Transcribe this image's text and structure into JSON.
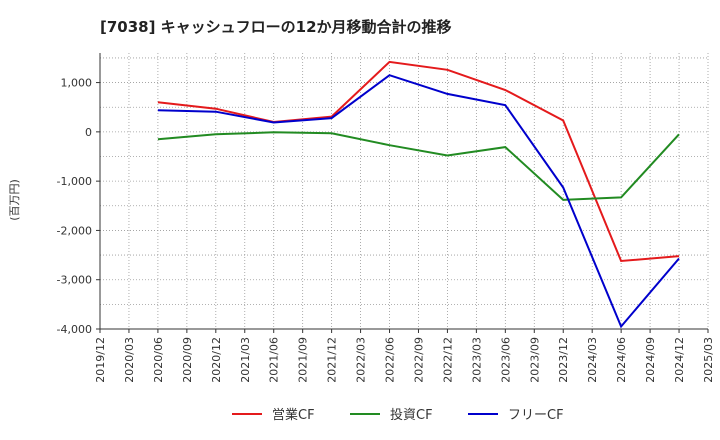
{
  "chart_data": {
    "type": "line",
    "title": "[7038]  キャッシュフローの12か月移動合計の推移",
    "ylabel": "(百万円)",
    "xlabel": "",
    "ylim": [
      -4000,
      1600
    ],
    "yticks": [
      1000,
      0,
      -1000,
      -2000,
      -3000,
      -4000
    ],
    "ytick_labels": [
      "1,000",
      "0",
      "-1,000",
      "-2,000",
      "-3,000",
      "-4,000"
    ],
    "grid": true,
    "legend_position": "bottom",
    "x_categories": [
      "2019/12",
      "2020/03",
      "2020/06",
      "2020/09",
      "2020/12",
      "2021/03",
      "2021/06",
      "2021/09",
      "2021/12",
      "2022/03",
      "2022/06",
      "2022/09",
      "2022/12",
      "2023/03",
      "2023/06",
      "2023/09",
      "2023/12",
      "2024/03",
      "2024/06",
      "2024/09",
      "2024/12",
      "2025/03"
    ],
    "series": [
      {
        "name": "営業CF",
        "color": "#e41a1c",
        "points": [
          {
            "x": "2020/06",
            "y": 600
          },
          {
            "x": "2020/12",
            "y": 470
          },
          {
            "x": "2021/06",
            "y": 200
          },
          {
            "x": "2021/12",
            "y": 310
          },
          {
            "x": "2022/06",
            "y": 1420
          },
          {
            "x": "2022/12",
            "y": 1260
          },
          {
            "x": "2023/06",
            "y": 850
          },
          {
            "x": "2023/12",
            "y": 230
          },
          {
            "x": "2024/06",
            "y": -2620
          },
          {
            "x": "2024/12",
            "y": -2520
          }
        ]
      },
      {
        "name": "投資CF",
        "color": "#228b22",
        "points": [
          {
            "x": "2020/06",
            "y": -150
          },
          {
            "x": "2020/12",
            "y": -50
          },
          {
            "x": "2021/06",
            "y": -10
          },
          {
            "x": "2021/12",
            "y": -30
          },
          {
            "x": "2022/06",
            "y": -270
          },
          {
            "x": "2022/12",
            "y": -480
          },
          {
            "x": "2023/06",
            "y": -310
          },
          {
            "x": "2023/12",
            "y": -1380
          },
          {
            "x": "2024/06",
            "y": -1330
          },
          {
            "x": "2024/12",
            "y": -50
          }
        ]
      },
      {
        "name": "フリーCF",
        "color": "#0000cc",
        "points": [
          {
            "x": "2020/06",
            "y": 440
          },
          {
            "x": "2020/12",
            "y": 410
          },
          {
            "x": "2021/06",
            "y": 190
          },
          {
            "x": "2021/12",
            "y": 280
          },
          {
            "x": "2022/06",
            "y": 1150
          },
          {
            "x": "2022/12",
            "y": 770
          },
          {
            "x": "2023/06",
            "y": 540
          },
          {
            "x": "2023/12",
            "y": -1130
          },
          {
            "x": "2024/06",
            "y": -3950
          },
          {
            "x": "2024/12",
            "y": -2570
          }
        ]
      }
    ]
  }
}
